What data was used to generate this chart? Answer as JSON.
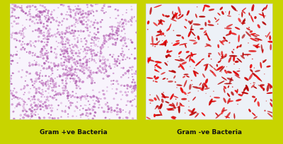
{
  "background_color": "#c8d400",
  "panel_bg_left": "#f8f4fc",
  "panel_bg_right": "#edf1f7",
  "label_left": "Gram +ve Bacteria",
  "label_right": "Gram -ve Bacteria",
  "label_fontsize": 6.5,
  "label_color": "#111111",
  "bacteria_color_left_dark": "#b060b0",
  "bacteria_color_left_mid": "#cc88cc",
  "bacteria_color_left_light": "#e0b0e0",
  "bacteria_color_right": "#cc1111",
  "fig_width": 4.0,
  "fig_height": 2.05,
  "dpi": 100
}
